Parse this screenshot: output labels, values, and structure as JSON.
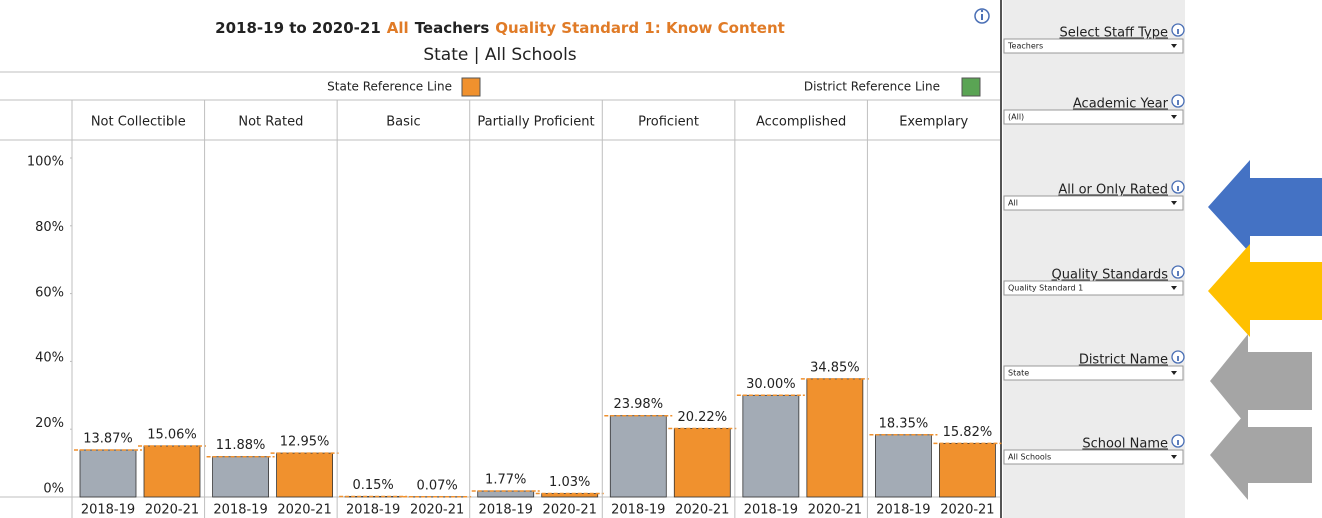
{
  "chart_data": {
    "type": "bar",
    "title": [
      {
        "text": "2018-19 to 2020-21",
        "color": "#222222"
      },
      {
        "text": "All",
        "color": "#e07b27"
      },
      {
        "text": "Teachers",
        "color": "#222222"
      },
      {
        "text": "Quality Standard 1: Know Content",
        "color": "#e07b27"
      }
    ],
    "subtitle": "State | All Schools",
    "reference_lines": [
      {
        "name": "State Reference Line",
        "color": "#f0912e"
      },
      {
        "name": "District Reference Line",
        "color": "#5aa454"
      }
    ],
    "categories": [
      "Not Collectible",
      "Not Rated",
      "Basic",
      "Partially Proficient",
      "Proficient",
      "Accomplished",
      "Exemplary"
    ],
    "series": [
      {
        "name": "2018-19",
        "color": "#a3abb5",
        "values": [
          13.87,
          11.88,
          0.15,
          1.77,
          23.98,
          30.0,
          18.35
        ],
        "value_labels": [
          "13.87%",
          "11.88%",
          "0.15%",
          "1.77%",
          "23.98%",
          "30.00%",
          "18.35%"
        ]
      },
      {
        "name": "2020-21",
        "color": "#f0912e",
        "values": [
          15.06,
          12.95,
          0.07,
          1.03,
          20.22,
          34.85,
          15.82
        ],
        "value_labels": [
          "15.06%",
          "12.95%",
          "0.07%",
          "1.03%",
          "20.22%",
          "34.85%",
          "15.82%"
        ]
      }
    ],
    "ylim": [
      0,
      100
    ],
    "yticks": [
      {
        "value": 0,
        "label": "0%"
      },
      {
        "value": 20,
        "label": "20%"
      },
      {
        "value": 40,
        "label": "40%"
      },
      {
        "value": 60,
        "label": "60%"
      },
      {
        "value": 80,
        "label": "80%"
      },
      {
        "value": 100,
        "label": "100%"
      }
    ],
    "reference_line_color": "#f0912e"
  },
  "filters": [
    {
      "label": "Select Staff Type",
      "value": "Teachers"
    },
    {
      "label": "Academic Year",
      "value": "(All)"
    },
    {
      "label": "All or Only Rated",
      "value": "All"
    },
    {
      "label": "Quality Standards",
      "value": "Quality Standard 1"
    },
    {
      "label": "District Name",
      "value": "State"
    },
    {
      "label": "School Name",
      "value": "All Schools"
    }
  ]
}
